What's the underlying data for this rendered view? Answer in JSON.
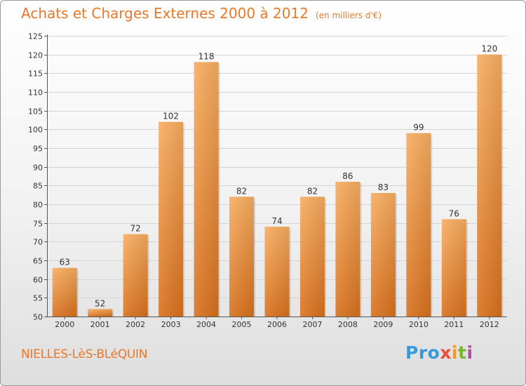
{
  "title": "Achats et Charges Externes 2000 à 2012",
  "subtitle": "(en milliers d'€)",
  "commune": "NIELLES-LèS-BLéQUIN",
  "logo": {
    "brand": "Proxiti",
    "p1": "Pro",
    "p2": "x",
    "p3": "i",
    "p4": "t",
    "p5": "i"
  },
  "colors": {
    "bar_light": "#f7a85a",
    "bar_dark": "#d9731f",
    "text_accent": "#e8782a",
    "grid": "#d4d4d4"
  },
  "chart_data": {
    "type": "bar",
    "categories": [
      "2000",
      "2001",
      "2002",
      "2003",
      "2004",
      "2005",
      "2006",
      "2007",
      "2008",
      "2009",
      "2010",
      "2011",
      "2012"
    ],
    "values": [
      63,
      52,
      72,
      102,
      118,
      82,
      74,
      82,
      86,
      83,
      99,
      76,
      120
    ],
    "yticks": [
      50,
      55,
      60,
      65,
      70,
      75,
      80,
      85,
      90,
      95,
      100,
      105,
      110,
      115,
      120,
      125
    ],
    "ylim": [
      50,
      125
    ],
    "grid": true
  }
}
